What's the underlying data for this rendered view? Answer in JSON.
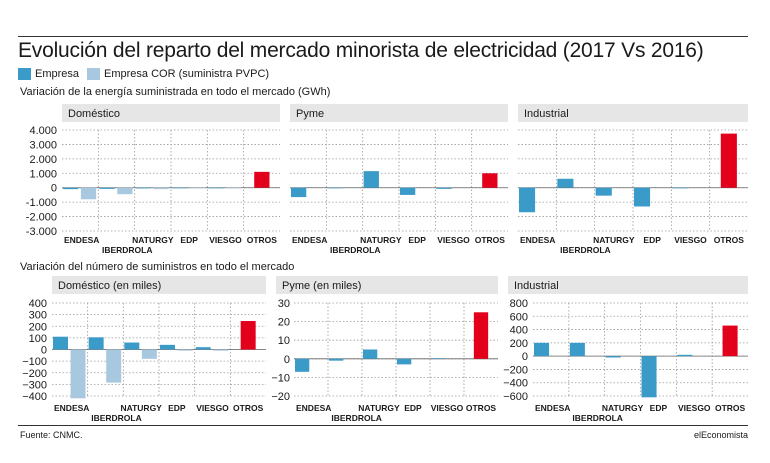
{
  "title": "Evolución del reparto del mercado minorista de electricidad (2017 Vs 2016)",
  "legend": [
    {
      "label": "Empresa",
      "color": "#3a9ac8"
    },
    {
      "label": "Empresa COR (suministra PVPC)",
      "color": "#a8c8e0"
    }
  ],
  "other_color": "#e3001b",
  "sections": {
    "energy": "Variación de la energía suministrada en todo el mercado (GWh)",
    "supplies": "Variación del número de suministros en todo el mercado"
  },
  "footer": {
    "source": "Fuente: CNMC.",
    "brand": "elEconomista"
  },
  "chart_data": [
    {
      "type": "bar",
      "title": "Doméstico",
      "categories": [
        "ENDESA",
        "IBERDROLA",
        "NATURGY",
        "EDP",
        "VIESGO",
        "OTROS"
      ],
      "yticks": [
        "4.000",
        "3.000",
        "2.000",
        "1.000",
        "0",
        "-1.000",
        "-2.000",
        "-3.000"
      ],
      "ylim": [
        -3000,
        4000
      ],
      "empresa": [
        -100,
        -80,
        -50,
        -30,
        -30,
        1100
      ],
      "cor": [
        -800,
        -450,
        -100,
        -30,
        -20,
        null
      ]
    },
    {
      "type": "bar",
      "title": "Pyme",
      "categories": [
        "ENDESA",
        "IBERDROLA",
        "NATURGY",
        "EDP",
        "VIESGO",
        "OTROS"
      ],
      "yticks": [],
      "ylim": [
        -3000,
        4000
      ],
      "empresa": [
        -650,
        -20,
        1150,
        -500,
        -80,
        1000
      ],
      "cor": [
        null,
        null,
        null,
        null,
        null,
        null
      ]
    },
    {
      "type": "bar",
      "title": "Industrial",
      "categories": [
        "ENDESA",
        "IBERDROLA",
        "NATURGY",
        "EDP",
        "VIESGO",
        "OTROS"
      ],
      "yticks": [],
      "ylim": [
        -3000,
        4000
      ],
      "empresa": [
        -1700,
        620,
        -550,
        -1300,
        -30,
        3750
      ],
      "cor": [
        null,
        null,
        null,
        null,
        null,
        null
      ]
    },
    {
      "type": "bar",
      "title": "Doméstico (en miles)",
      "categories": [
        "ENDESA",
        "IBERDROLA",
        "NATURGY",
        "EDP",
        "VIESGO",
        "OTROS"
      ],
      "yticks": [
        "400",
        "300",
        "200",
        "100",
        "0",
        "−100",
        "−200",
        "−300",
        "−400"
      ],
      "ylim": [
        -400,
        400
      ],
      "empresa": [
        110,
        105,
        60,
        40,
        20,
        245
      ],
      "cor": [
        -420,
        -285,
        -80,
        -10,
        -10,
        null
      ]
    },
    {
      "type": "bar",
      "title": "Pyme (en miles)",
      "categories": [
        "ENDESA",
        "IBERDROLA",
        "NATURGY",
        "EDP",
        "VIESGO",
        "OTROS"
      ],
      "yticks": [
        "30",
        "20",
        "10",
        "0",
        "−10",
        "−20"
      ],
      "ylim": [
        -20,
        30
      ],
      "empresa": [
        -7,
        -1,
        5,
        -3,
        0.3,
        25
      ],
      "cor": [
        null,
        null,
        null,
        null,
        null,
        null
      ]
    },
    {
      "type": "bar",
      "title": "Industrial",
      "categories": [
        "ENDESA",
        "IBERDROLA",
        "NATURGY",
        "EDP",
        "VIESGO",
        "OTROS"
      ],
      "yticks": [
        "800",
        "600",
        "400",
        "200",
        "0",
        "−200",
        "−400",
        "−600"
      ],
      "ylim": [
        -600,
        800
      ],
      "empresa": [
        200,
        200,
        -20,
        -620,
        20,
        460
      ],
      "cor": [
        null,
        null,
        null,
        null,
        null,
        null
      ]
    }
  ]
}
